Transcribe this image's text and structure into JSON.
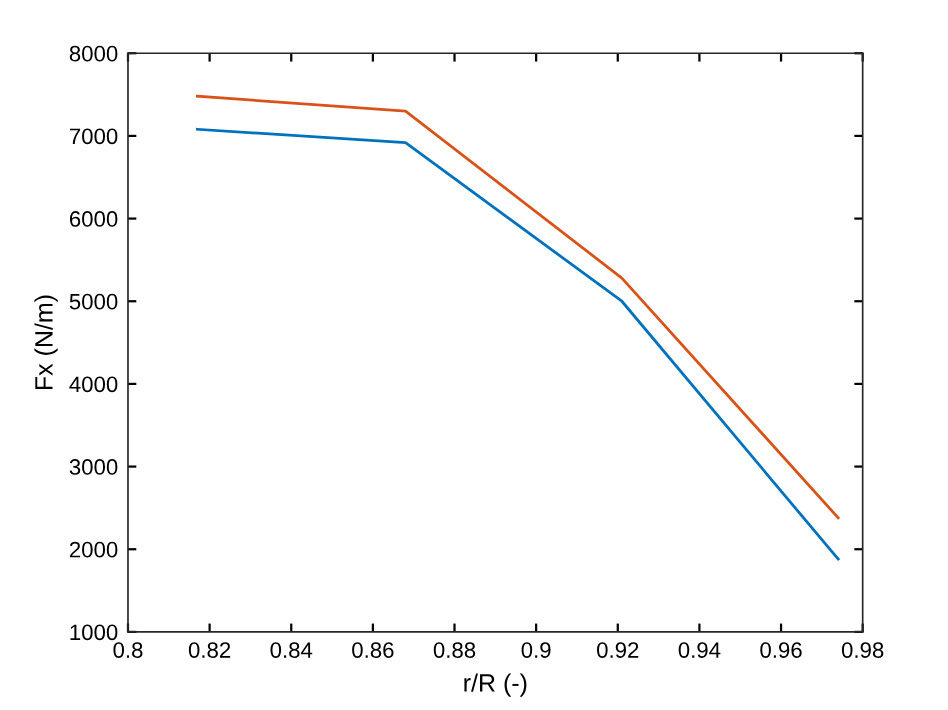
{
  "chart_data": {
    "type": "line",
    "xlabel": "r/R (-)",
    "ylabel": "Fx (N/m)",
    "x": [
      0.817,
      0.868,
      0.921,
      0.974
    ],
    "series": [
      {
        "color": "#0072bd",
        "values": [
          7080,
          6920,
          5000,
          1880
        ]
      },
      {
        "color": "#d95319",
        "values": [
          7480,
          7300,
          5280,
          2380
        ]
      }
    ],
    "xlim": [
      0.8,
      0.98
    ],
    "xticks": [
      {
        "value": 0.8,
        "label": "0.8"
      },
      0.82,
      0.84,
      0.86,
      0.88,
      {
        "value": 0.9,
        "label": "0.9"
      },
      0.92,
      0.94,
      0.96,
      0.98
    ],
    "ylim": [
      1000,
      8000
    ],
    "yticks": [
      1000,
      2000,
      3000,
      4000,
      5000,
      6000,
      7000,
      8000
    ],
    "grid": false,
    "legend": false,
    "marker": "none",
    "line_style": "solid"
  }
}
